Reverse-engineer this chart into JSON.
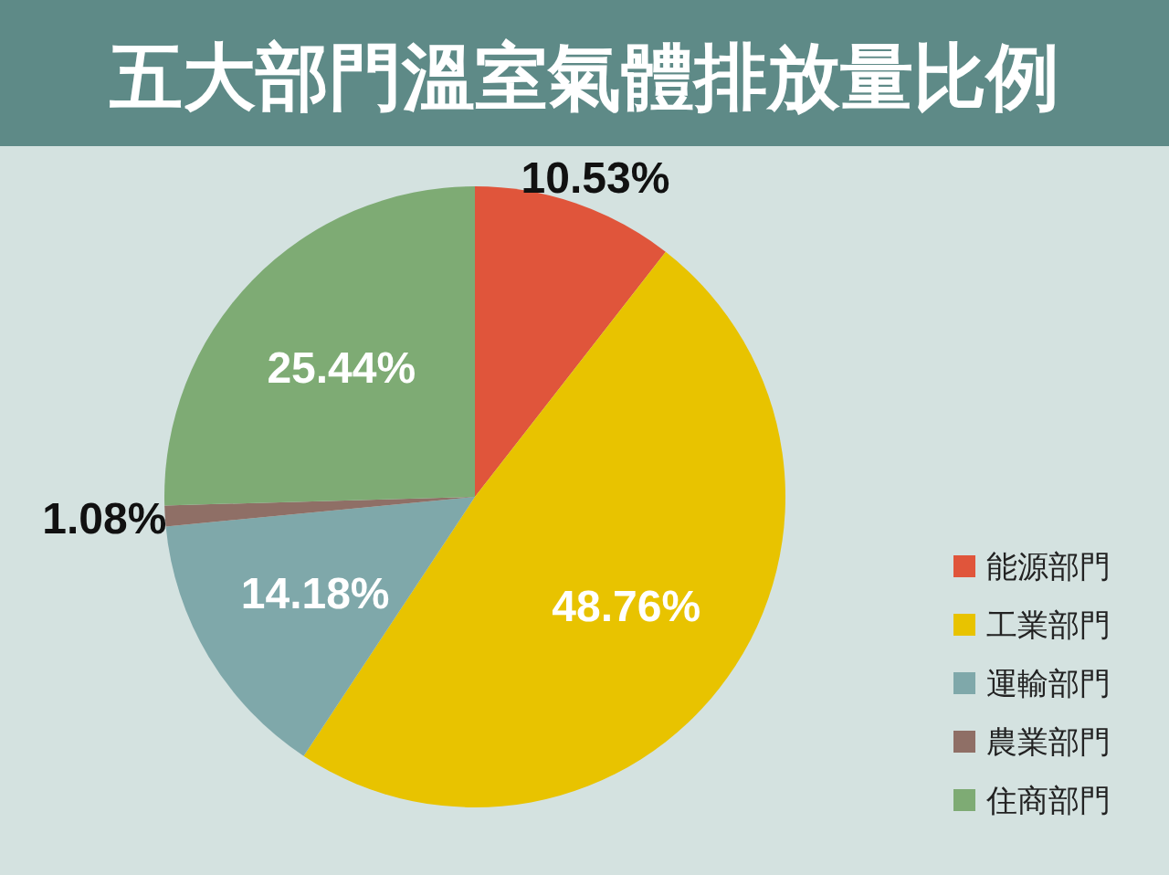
{
  "chart_data": {
    "type": "pie",
    "title": "五大部門溫室氣體排放量比例",
    "categories": [
      "能源部門",
      "工業部門",
      "運輸部門",
      "農業部門",
      "住商部門"
    ],
    "values": [
      10.53,
      48.76,
      14.18,
      1.08,
      25.44
    ],
    "colors": [
      "#e0553b",
      "#e8c300",
      "#7fa8aa",
      "#8f6f66",
      "#7eab74"
    ],
    "value_labels": [
      "10.53%",
      "48.76%",
      "14.18%",
      "1.08%",
      "25.44%"
    ],
    "legend": "right"
  }
}
